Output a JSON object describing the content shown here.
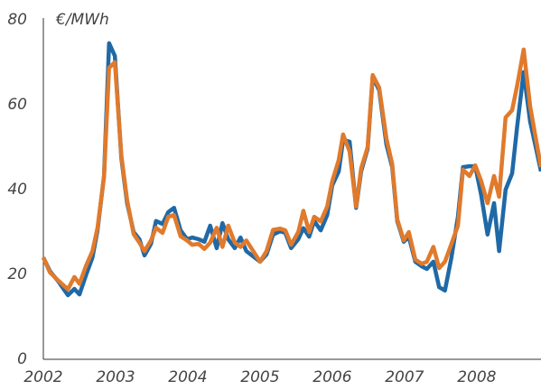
{
  "chart_data": {
    "type": "line",
    "y_label": "€/MWh",
    "x": [
      2002.0,
      2002.09,
      2002.21,
      2002.34,
      2002.43,
      2002.5,
      2002.59,
      2002.68,
      2002.75,
      2002.84,
      2002.91,
      2002.99,
      2003.08,
      2003.16,
      2003.25,
      2003.33,
      2003.4,
      2003.49,
      2003.56,
      2003.65,
      2003.73,
      2003.81,
      2003.9,
      2003.99,
      2004.06,
      2004.15,
      2004.23,
      2004.31,
      2004.4,
      2004.48,
      2004.56,
      2004.65,
      2004.73,
      2004.81,
      2005.0,
      2005.09,
      2005.18,
      2005.28,
      2005.35,
      2005.43,
      2005.53,
      2005.6,
      2005.68,
      2005.75,
      2005.84,
      2005.93,
      2006.0,
      2006.09,
      2006.15,
      2006.24,
      2006.33,
      2006.4,
      2006.49,
      2006.56,
      2006.65,
      2006.75,
      2006.83,
      2006.9,
      2006.99,
      2007.06,
      2007.15,
      2007.24,
      2007.31,
      2007.4,
      2007.48,
      2007.56,
      2007.65,
      2007.74,
      2007.81,
      2007.9,
      2007.98,
      2008.06,
      2008.15,
      2008.24,
      2008.31,
      2008.4,
      2008.49,
      2008.56,
      2008.65,
      2008.74,
      2008.81,
      2008.89
    ],
    "series": [
      {
        "color": "#1f69a6",
        "values": [
          24,
          20.8,
          18.3,
          15.1,
          16.6,
          15.3,
          19.8,
          24,
          30.4,
          43.2,
          74.5,
          71.5,
          47.4,
          36.8,
          30,
          28.3,
          24.5,
          27.2,
          32.6,
          31.9,
          34.7,
          35.7,
          30.4,
          28.3,
          28.7,
          28.3,
          27.7,
          31.5,
          26.2,
          32.1,
          28.3,
          26.2,
          28.7,
          25.5,
          23,
          24.7,
          29.4,
          30.2,
          29.8,
          26.2,
          28.3,
          30.9,
          28.9,
          32.6,
          30.4,
          34,
          41,
          44.3,
          51.7,
          51.3,
          35.7,
          44.3,
          49.6,
          66.6,
          63.4,
          50.6,
          45.3,
          32.6,
          27.7,
          28.9,
          23,
          21.9,
          21.3,
          23,
          17,
          16.2,
          24,
          33.6,
          45.3,
          45.5,
          45.5,
          38.9,
          29.4,
          36.8,
          25.5,
          40,
          43.8,
          54.9,
          67.7,
          56,
          50.6,
          44.3
        ]
      },
      {
        "color": "#e07a2c",
        "values": [
          24,
          20.5,
          18.5,
          16.5,
          19.4,
          17.8,
          22,
          25.5,
          31,
          43,
          68.7,
          70,
          48,
          37.5,
          29.5,
          27.5,
          25.5,
          28,
          31,
          29.8,
          33.6,
          34,
          29,
          28,
          27,
          27.2,
          26,
          27.5,
          31,
          26.5,
          31.5,
          27.5,
          26.5,
          28,
          23,
          25.5,
          30.5,
          30.8,
          30.4,
          27,
          30,
          35,
          30,
          33.6,
          32.5,
          36,
          42,
          47,
          53,
          49,
          36,
          45,
          50,
          67,
          64,
          52,
          46,
          33,
          28,
          30,
          23.5,
          22.5,
          23,
          26.5,
          21.5,
          23,
          27.2,
          31.5,
          44.7,
          43.2,
          45.7,
          42.1,
          36.8,
          43.2,
          38.3,
          57,
          58.7,
          64.5,
          73,
          59.6,
          52.8,
          45.3
        ]
      }
    ],
    "xlim": [
      2002,
      2008.89
    ],
    "xticks": [
      2002,
      2003,
      2004,
      2005,
      2006,
      2007,
      2008
    ],
    "ylim": [
      0,
      80
    ],
    "yticks": [
      0,
      20,
      40,
      60,
      80
    ],
    "grid": false
  }
}
